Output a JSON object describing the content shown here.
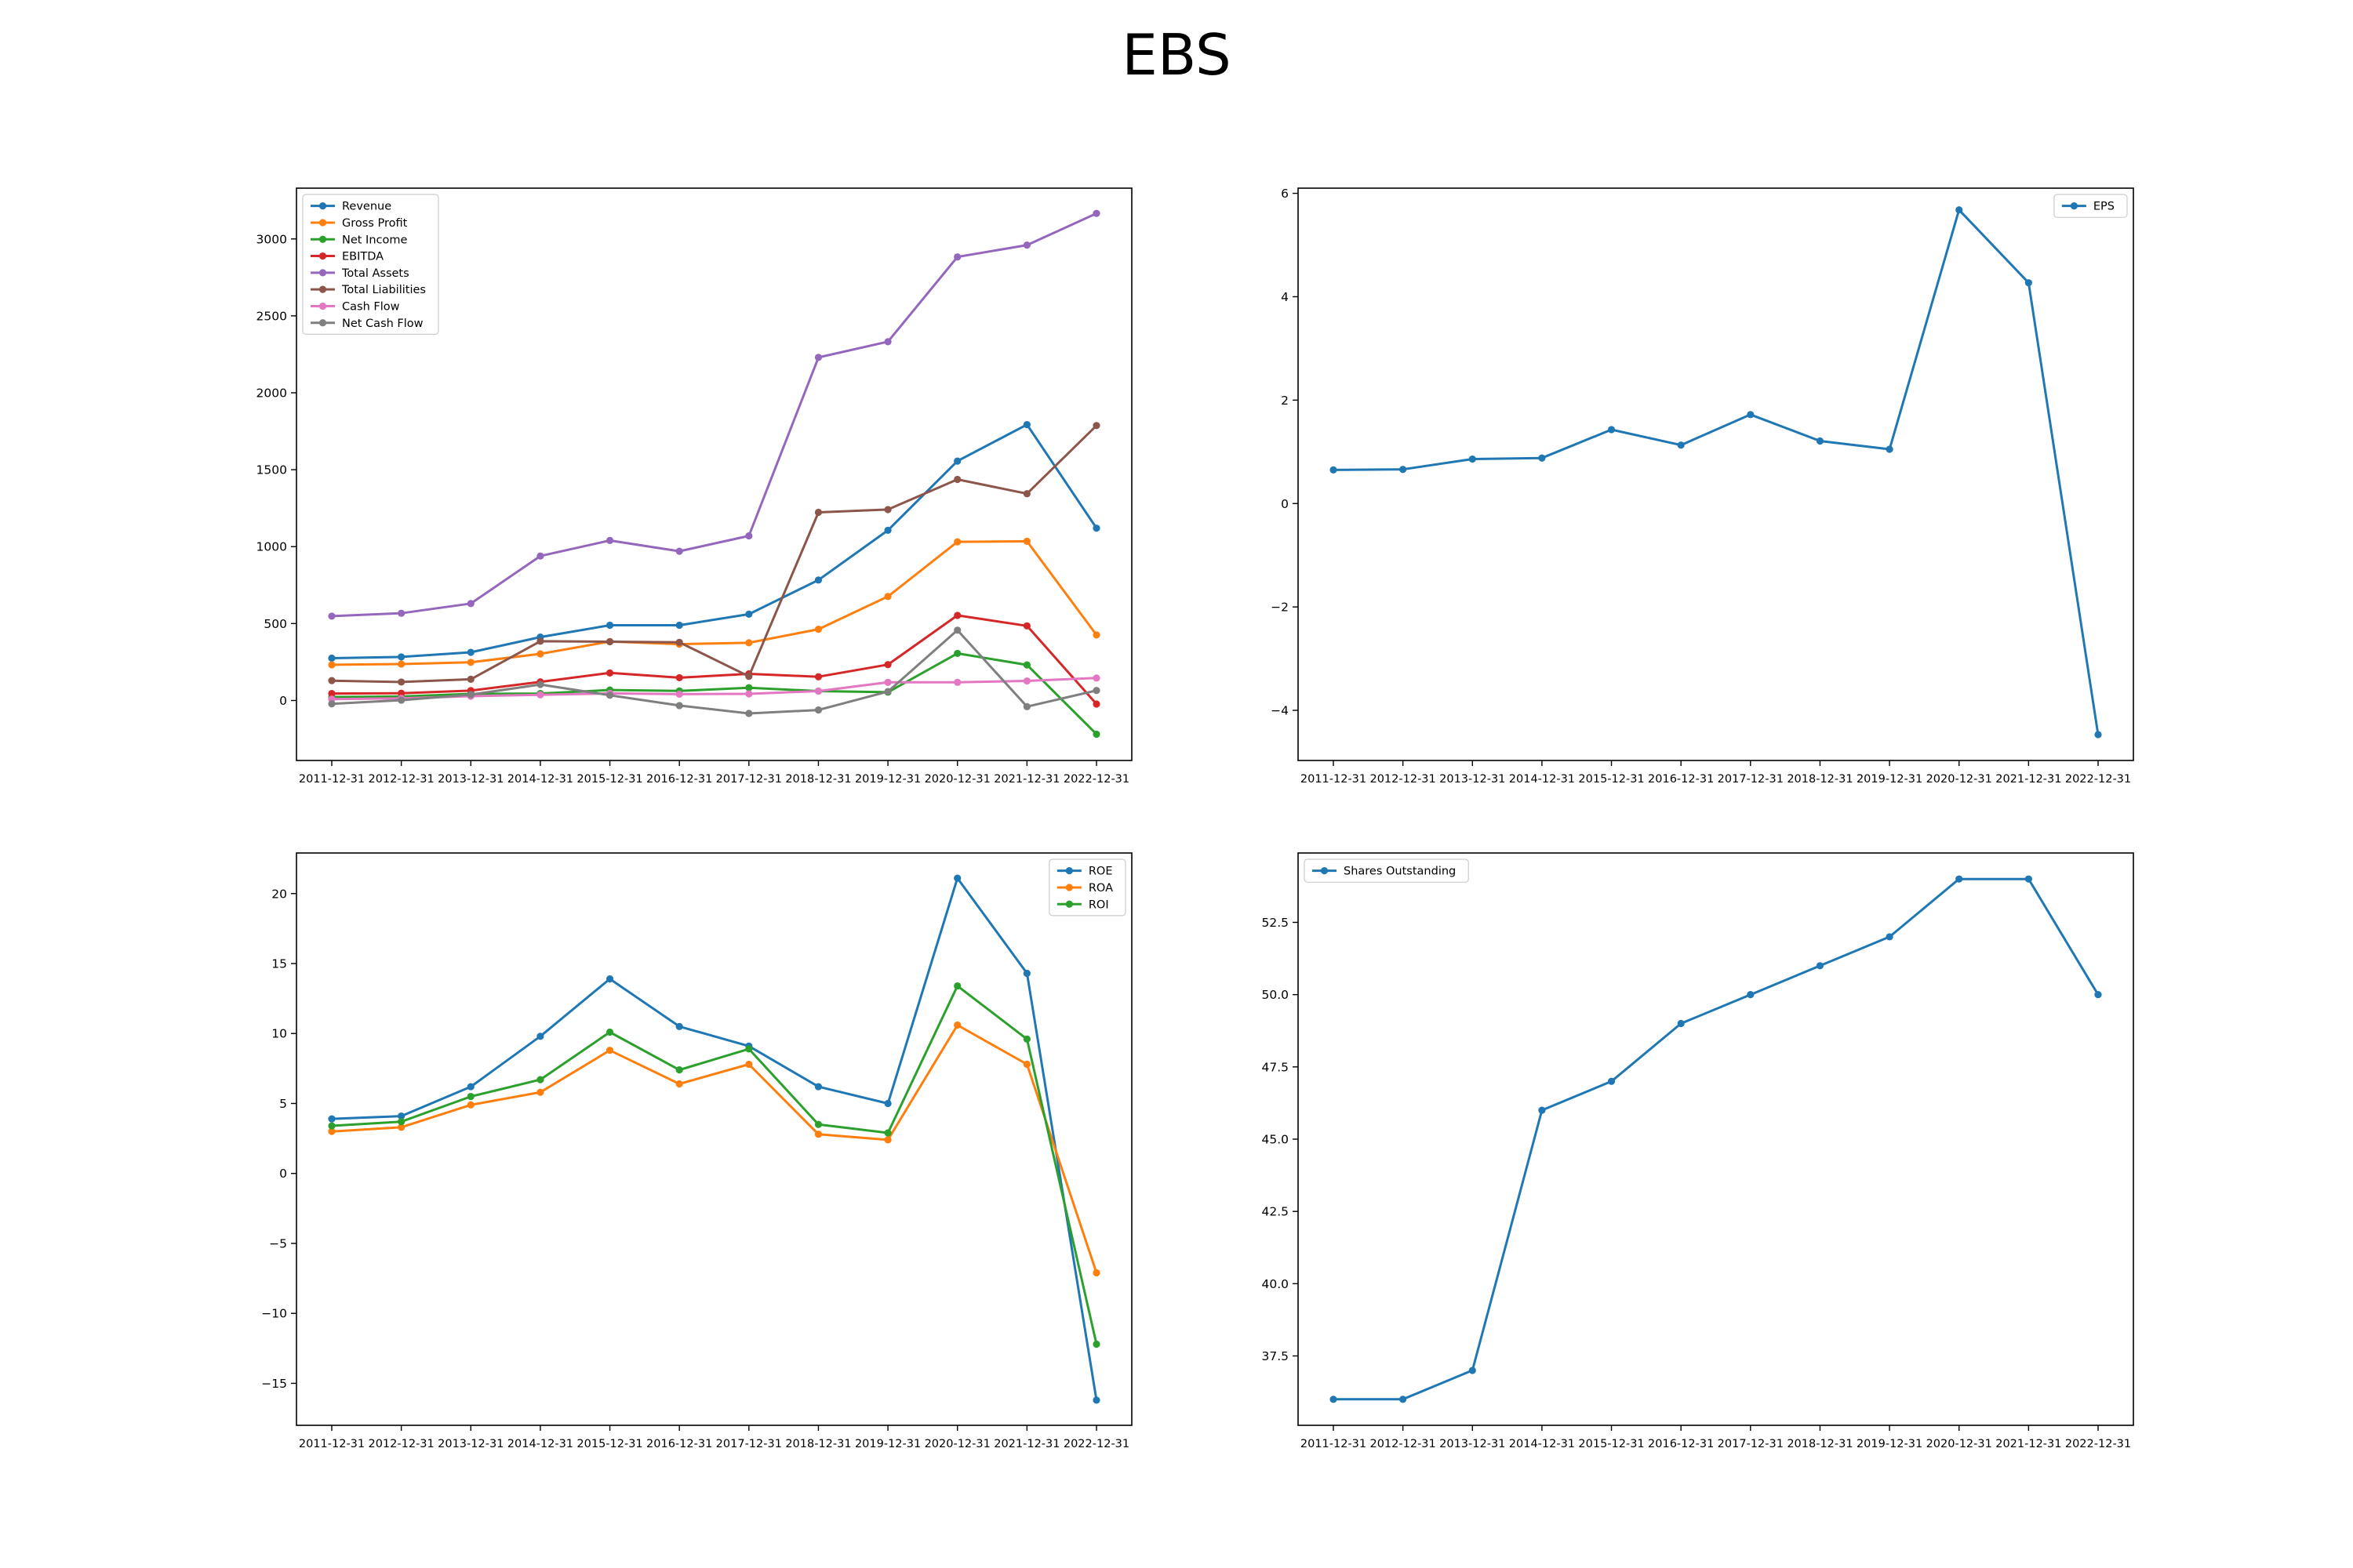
{
  "title": "EBS",
  "colors": {
    "blue": "#1f77b4",
    "orange": "#ff7f0e",
    "green": "#2ca02c",
    "red": "#d62728",
    "purple": "#9467bd",
    "brown": "#8c564b",
    "pink": "#e377c2",
    "gray": "#7f7f7f"
  },
  "chart_data": [
    {
      "type": "line",
      "title": "",
      "xlabel": "",
      "ylabel": "",
      "legend": "upper left",
      "categories": [
        "2011-12-31",
        "2012-12-31",
        "2013-12-31",
        "2014-12-31",
        "2015-12-31",
        "2016-12-31",
        "2017-12-31",
        "2018-12-31",
        "2019-12-31",
        "2020-12-31",
        "2021-12-31",
        "2022-12-31"
      ],
      "ylim": [
        -390,
        3330
      ],
      "yticks": [
        0,
        500,
        1000,
        1500,
        2000,
        2500,
        3000
      ],
      "ytick_labels": [
        "0",
        "500",
        "1000",
        "1500",
        "2000",
        "2500",
        "3000"
      ],
      "series": [
        {
          "name": "Revenue",
          "color": "#1f77b4",
          "values": [
            275,
            283,
            313,
            412,
            489,
            489,
            561,
            783,
            1106,
            1556,
            1793,
            1120
          ]
        },
        {
          "name": "Gross Profit",
          "color": "#ff7f0e",
          "values": [
            232,
            237,
            248,
            303,
            383,
            366,
            375,
            463,
            676,
            1031,
            1035,
            426
          ]
        },
        {
          "name": "Net Income",
          "color": "#2ca02c",
          "values": [
            23,
            26,
            43,
            45,
            68,
            62,
            83,
            61,
            54,
            306,
            231,
            -219
          ]
        },
        {
          "name": "EBITDA",
          "color": "#d62728",
          "values": [
            45,
            47,
            64,
            121,
            179,
            148,
            173,
            154,
            233,
            553,
            485,
            -23
          ]
        },
        {
          "name": "Total Assets",
          "color": "#9467bd",
          "values": [
            548,
            567,
            630,
            939,
            1040,
            970,
            1070,
            2230,
            2332,
            2883,
            2960,
            3166
          ]
        },
        {
          "name": "Total Liabilities",
          "color": "#8c564b",
          "values": [
            129,
            120,
            138,
            385,
            382,
            378,
            157,
            1223,
            1241,
            1437,
            1344,
            1787
          ]
        },
        {
          "name": "Cash Flow",
          "color": "#e377c2",
          "values": [
            9,
            14,
            28,
            37,
            46,
            41,
            43,
            61,
            118,
            118,
            127,
            146
          ]
        },
        {
          "name": "Net Cash Flow",
          "color": "#7f7f7f",
          "values": [
            -22,
            2,
            38,
            104,
            34,
            -33,
            -84,
            -62,
            58,
            457,
            -40,
            65
          ]
        }
      ]
    },
    {
      "type": "line",
      "title": "",
      "xlabel": "",
      "ylabel": "",
      "legend": "upper right",
      "categories": [
        "2011-12-31",
        "2012-12-31",
        "2013-12-31",
        "2014-12-31",
        "2015-12-31",
        "2016-12-31",
        "2017-12-31",
        "2018-12-31",
        "2019-12-31",
        "2020-12-31",
        "2021-12-31",
        "2022-12-31"
      ],
      "ylim": [
        -4.97,
        6.1
      ],
      "yticks": [
        -4,
        -2,
        0,
        2,
        4,
        6
      ],
      "ytick_labels": [
        "−4",
        "−2",
        "0",
        "2",
        "4",
        "6"
      ],
      "series": [
        {
          "name": "EPS",
          "color": "#1f77b4",
          "values": [
            0.65,
            0.66,
            0.86,
            0.88,
            1.43,
            1.13,
            1.72,
            1.21,
            1.05,
            5.68,
            4.27,
            -4.47
          ]
        }
      ]
    },
    {
      "type": "line",
      "title": "",
      "xlabel": "",
      "ylabel": "",
      "legend": "upper right",
      "categories": [
        "2011-12-31",
        "2012-12-31",
        "2013-12-31",
        "2014-12-31",
        "2015-12-31",
        "2016-12-31",
        "2017-12-31",
        "2018-12-31",
        "2019-12-31",
        "2020-12-31",
        "2021-12-31",
        "2022-12-31"
      ],
      "ylim": [
        -18.0,
        22.9
      ],
      "yticks": [
        -15,
        -10,
        -5,
        0,
        5,
        10,
        15,
        20
      ],
      "ytick_labels": [
        "−15",
        "−10",
        "−5",
        "0",
        "5",
        "10",
        "15",
        "20"
      ],
      "series": [
        {
          "name": "ROE",
          "color": "#1f77b4",
          "values": [
            3.9,
            4.1,
            6.2,
            9.8,
            13.9,
            10.5,
            9.1,
            6.2,
            5.0,
            21.1,
            14.3,
            -16.2
          ]
        },
        {
          "name": "ROA",
          "color": "#ff7f0e",
          "values": [
            3.0,
            3.3,
            4.9,
            5.8,
            8.8,
            6.4,
            7.8,
            2.8,
            2.4,
            10.6,
            7.8,
            -7.1
          ]
        },
        {
          "name": "ROI",
          "color": "#2ca02c",
          "values": [
            3.4,
            3.7,
            5.5,
            6.7,
            10.1,
            7.4,
            8.9,
            3.5,
            2.9,
            13.4,
            9.6,
            -12.2
          ]
        }
      ]
    },
    {
      "type": "line",
      "title": "",
      "xlabel": "",
      "ylabel": "",
      "legend": "upper left",
      "categories": [
        "2011-12-31",
        "2012-12-31",
        "2013-12-31",
        "2014-12-31",
        "2015-12-31",
        "2016-12-31",
        "2017-12-31",
        "2018-12-31",
        "2019-12-31",
        "2020-12-31",
        "2021-12-31",
        "2022-12-31"
      ],
      "ylim": [
        35.1,
        54.9
      ],
      "yticks": [
        37.5,
        40.0,
        42.5,
        45.0,
        47.5,
        50.0,
        52.5
      ],
      "ytick_labels": [
        "37.5",
        "40.0",
        "42.5",
        "45.0",
        "47.5",
        "50.0",
        "52.5"
      ],
      "series": [
        {
          "name": "Shares Outstanding",
          "color": "#1f77b4",
          "values": [
            36,
            36,
            37,
            46,
            47,
            49,
            50,
            51,
            52,
            54,
            54,
            50
          ]
        }
      ]
    }
  ]
}
